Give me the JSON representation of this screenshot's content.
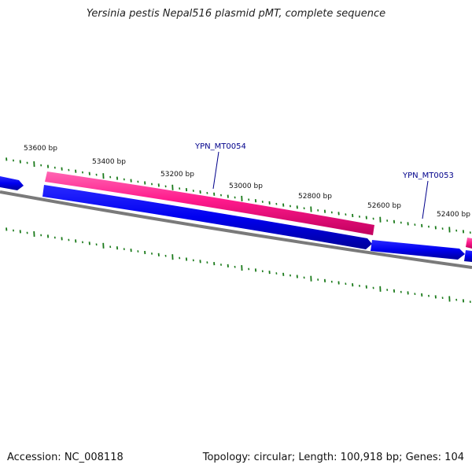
{
  "title": "Yersinia pestis Nepal516 plasmid pMT, complete sequence",
  "footer": {
    "accession": "Accession: NC_008118",
    "summary": "Topology: circular; Length: 100,918 bp; Genes: 104"
  },
  "colors": {
    "background": "#ffffff",
    "backbone": "#7a7a7a",
    "forward_feature": "#ff3399",
    "reverse_feature": "#0000ee",
    "tick": "#1a7a1a",
    "gene_label": "#00008b",
    "scale_label": "#111111"
  },
  "scale_labels": [
    "53600 bp",
    "53400 bp",
    "53200 bp",
    "53000 bp",
    "52800 bp",
    "52600 bp",
    "52400 bp"
  ],
  "gene_labels": [
    "YPN_MT0054",
    "YPN_MT0053"
  ]
}
